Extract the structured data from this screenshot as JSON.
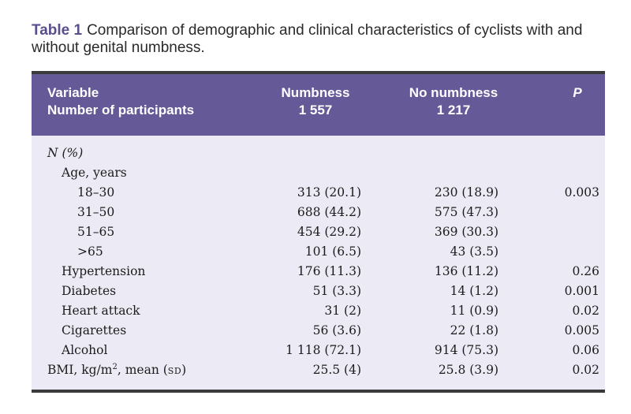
{
  "caption": {
    "label": "Table 1",
    "text": "Comparison of demographic and clinical characteristics of cyclists with and without genital numbness."
  },
  "header": {
    "variable": "Variable",
    "participants": "Number of participants",
    "numbness": "Numbness",
    "numbness_n": "1 557",
    "no_numbness": "No numbness",
    "no_numbness_n": "1 217",
    "p": "P"
  },
  "section_label": "N (%)",
  "rows": [
    {
      "label": "Age, years",
      "numbness": "",
      "no_numbness": "",
      "p": ""
    },
    {
      "label": "18–30",
      "numbness": "313 (20.1)",
      "no_numbness": "230 (18.9)",
      "p": "0.003"
    },
    {
      "label": "31–50",
      "numbness": "688 (44.2)",
      "no_numbness": "575 (47.3)",
      "p": ""
    },
    {
      "label": "51–65",
      "numbness": "454 (29.2)",
      "no_numbness": "369 (30.3)",
      "p": ""
    },
    {
      "label": ">65",
      "numbness": "101 (6.5)",
      "no_numbness": "43 (3.5)",
      "p": ""
    },
    {
      "label": "Hypertension",
      "numbness": "176 (11.3)",
      "no_numbness": "136 (11.2)",
      "p": "0.26"
    },
    {
      "label": "Diabetes",
      "numbness": "51 (3.3)",
      "no_numbness": "14 (1.2)",
      "p": "0.001"
    },
    {
      "label": "Heart attack",
      "numbness": "31 (2)",
      "no_numbness": "11 (0.9)",
      "p": "0.02"
    },
    {
      "label": "Cigarettes",
      "numbness": "56 (3.6)",
      "no_numbness": "22 (1.8)",
      "p": "0.005"
    },
    {
      "label": "Alcohol",
      "numbness": "1 118 (72.1)",
      "no_numbness": "914 (75.3)",
      "p": "0.06"
    }
  ],
  "bmi_row": {
    "label_a": "BMI, kg/m",
    "label_sup": "2",
    "label_b": ", mean (",
    "label_sd": "sd",
    "label_c": ")",
    "numbness": "25.5 (4)",
    "no_numbness": "25.8 (3.9)",
    "p": "0.02"
  },
  "colors": {
    "header_bg": "#655a97",
    "body_bg": "#eceaf4",
    "caption_label": "#5b4e8c"
  }
}
